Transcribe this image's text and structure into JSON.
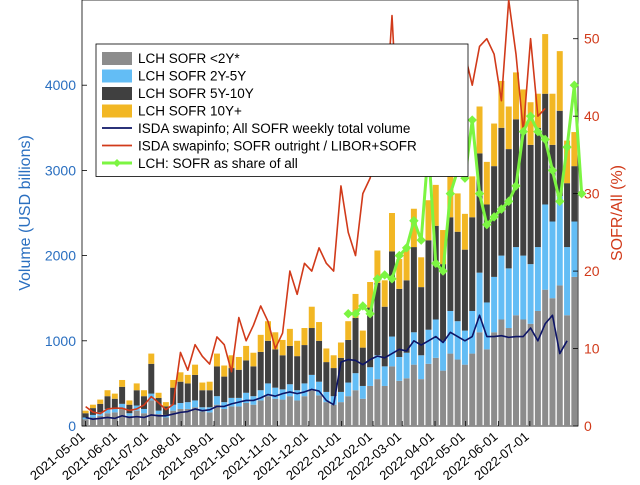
{
  "chart_data": {
    "type": "bar",
    "stacked": true,
    "xlabel": "",
    "ylabel_left": "Volume (USD billions)",
    "ylabel_right": "SOFR/All (%)",
    "ylim_left": [
      0,
      5000
    ],
    "ylim_right": [
      0,
      55
    ],
    "yticks_left": [
      0,
      1000,
      2000,
      3000,
      4000
    ],
    "yticks_right": [
      0,
      10,
      20,
      30,
      40,
      50
    ],
    "xticks": [
      {
        "label": "2021-05-01",
        "week": 0
      },
      {
        "label": "2021-06-01",
        "week": 4.4
      },
      {
        "label": "2021-07-01",
        "week": 8.7
      },
      {
        "label": "2021-08-01",
        "week": 13.1
      },
      {
        "label": "2021-09-01",
        "week": 17.6
      },
      {
        "label": "2021-10-01",
        "week": 21.9
      },
      {
        "label": "2021-11-01",
        "week": 26.3
      },
      {
        "label": "2021-12-01",
        "week": 30.6
      },
      {
        "label": "2022-01-01",
        "week": 35.1
      },
      {
        "label": "2022-02-01",
        "week": 39.4
      },
      {
        "label": "2022-03-01",
        "week": 43.4
      },
      {
        "label": "2022-04-01",
        "week": 47.9
      },
      {
        "label": "2022-05-01",
        "week": 52.1
      },
      {
        "label": "2022-06-01",
        "week": 56.6
      },
      {
        "label": "2022-07-01",
        "week": 60.9
      }
    ],
    "colors": {
      "lt2y": "#8c8c8c",
      "y2_5": "#63bdf5",
      "y5_10": "#404040",
      "y10p": "#f2b724",
      "isda_total": "#0d1466",
      "isda_ratio": "#d13a1a",
      "lch_share": "#7cf542",
      "axis_left": "#2a6fc0",
      "axis_right": "#d13a1a"
    },
    "series": [
      {
        "name": "LCH SOFR <2Y*",
        "key": "lt2y",
        "axis": "left",
        "kind": "bar",
        "values": [
          80,
          100,
          120,
          150,
          160,
          200,
          120,
          180,
          150,
          300,
          140,
          100,
          180,
          200,
          200,
          220,
          170,
          160,
          250,
          200,
          230,
          230,
          270,
          250,
          300,
          350,
          320,
          310,
          350,
          300,
          350,
          420,
          360,
          280,
          250,
          280,
          350,
          420,
          320,
          470,
          550,
          470,
          700,
          530,
          560,
          720,
          550,
          730,
          800,
          650,
          850,
          780,
          720,
          850,
          1100,
          900,
          1100,
          1250,
          1150,
          1300,
          1250,
          1200,
          1350,
          1600,
          1500,
          1650,
          1300,
          1750
        ]
      },
      {
        "name": "LCH SOFR 2Y-5Y",
        "key": "y2_5",
        "axis": "left",
        "kind": "bar",
        "values": [
          20,
          30,
          40,
          50,
          40,
          60,
          30,
          60,
          50,
          80,
          40,
          30,
          70,
          70,
          80,
          80,
          50,
          60,
          100,
          80,
          100,
          100,
          120,
          100,
          120,
          150,
          130,
          120,
          140,
          120,
          150,
          180,
          160,
          120,
          100,
          120,
          160,
          200,
          150,
          220,
          280,
          230,
          350,
          280,
          300,
          380,
          280,
          400,
          450,
          350,
          500,
          450,
          400,
          500,
          700,
          550,
          650,
          750,
          700,
          800,
          750,
          700,
          750,
          1000,
          900,
          1050,
          800,
          650
        ]
      },
      {
        "name": "LCH SOFR 5Y-10Y",
        "key": "y5_10",
        "axis": "left",
        "kind": "bar",
        "values": [
          50,
          80,
          100,
          150,
          120,
          200,
          100,
          180,
          150,
          350,
          150,
          100,
          200,
          250,
          220,
          300,
          200,
          200,
          350,
          300,
          350,
          330,
          380,
          350,
          450,
          500,
          450,
          400,
          450,
          400,
          450,
          550,
          480,
          350,
          330,
          400,
          500,
          650,
          450,
          700,
          850,
          700,
          1000,
          800,
          850,
          1000,
          800,
          1050,
          1100,
          900,
          1100,
          1050,
          950,
          1100,
          1400,
          1150,
          1300,
          1500,
          1400,
          1500,
          1450,
          1400,
          1400,
          1300,
          900,
          1000,
          750,
          650
        ]
      },
      {
        "name": "LCH SOFR 10Y+",
        "key": "y10p",
        "axis": "left",
        "kind": "bar",
        "values": [
          30,
          40,
          50,
          70,
          60,
          80,
          50,
          80,
          70,
          120,
          60,
          50,
          90,
          110,
          100,
          120,
          90,
          100,
          150,
          130,
          150,
          150,
          170,
          160,
          200,
          230,
          200,
          180,
          200,
          180,
          200,
          250,
          220,
          160,
          150,
          180,
          220,
          280,
          200,
          300,
          380,
          310,
          450,
          350,
          370,
          450,
          350,
          470,
          480,
          400,
          500,
          450,
          420,
          480,
          550,
          500,
          500,
          550,
          500,
          550,
          500,
          500,
          400,
          700,
          600,
          700,
          500,
          400
        ]
      },
      {
        "name": "ISDA swapinfo; All SOFR weekly total volume",
        "key": "isda_total",
        "axis": "left",
        "kind": "line",
        "values": [
          100,
          80,
          90,
          100,
          90,
          120,
          100,
          110,
          100,
          130,
          120,
          120,
          140,
          160,
          170,
          200,
          180,
          190,
          230,
          230,
          260,
          280,
          300,
          300,
          330,
          370,
          350,
          380,
          400,
          380,
          400,
          430,
          410,
          300,
          250,
          750,
          780,
          770,
          720,
          780,
          820,
          800,
          850,
          900,
          880,
          1000,
          950,
          1000,
          1050,
          980,
          1100,
          1050,
          1000,
          1050,
          1300,
          1050,
          1050,
          1060,
          1040,
          1050,
          1050,
          1150,
          1000,
          1200,
          1300,
          850,
          1000
        ]
      },
      {
        "name": "ISDA swapinfo; SOFR outright / LIBOR+SOFR",
        "key": "isda_ratio",
        "axis": "right",
        "kind": "line",
        "values": [
          2.5,
          1.8,
          1.6,
          2.2,
          2.3,
          2.3,
          2.0,
          2.2,
          2.7,
          3.8,
          3.0,
          2.1,
          2.8,
          9.5,
          7.2,
          10.5,
          9.0,
          8.0,
          11.5,
          10.5,
          7.0,
          14.0,
          11.0,
          13.0,
          15.5,
          13.5,
          10.0,
          12.0,
          20.0,
          17.0,
          21.0,
          20.0,
          23.0,
          21.0,
          20.0,
          31.0,
          25.0,
          22.0,
          30.0,
          32.0,
          36.0,
          38.0,
          53.0,
          35.0,
          39.0,
          38.0,
          41.0,
          43.0,
          43.0,
          46.0,
          41.0,
          45.0,
          48.0,
          44.0,
          49.0,
          50.0,
          48.0,
          42.0,
          56.0,
          48.0,
          38.0,
          50.0,
          40.0,
          41.0
        ]
      },
      {
        "name": "LCH: SOFR as share of all",
        "key": "lch_share",
        "axis": "right",
        "kind": "line-marker",
        "start_week": 36,
        "values": [
          14.5,
          14.5,
          15.5,
          14.5,
          19.0,
          19.5,
          19.0,
          22.0,
          23.0,
          26.5,
          24.0,
          36.0,
          21.0,
          20.0,
          30.0,
          33.0,
          32.0,
          39.5,
          30.0,
          26.0,
          27.0,
          28.0,
          29.0,
          31.0,
          38.0,
          40.0,
          38.0,
          37.0,
          33.0,
          29.0,
          36.0,
          44.0,
          30.0
        ]
      }
    ],
    "legend": {
      "placement": "top-center",
      "entries": [
        "LCH SOFR <2Y*",
        "LCH SOFR 2Y-5Y",
        "LCH SOFR 5Y-10Y",
        "LCH SOFR 10Y+",
        "ISDA swapinfo; All SOFR weekly total volume",
        "ISDA swapinfo; SOFR outright / LIBOR+SOFR",
        "LCH: SOFR as share of all"
      ]
    }
  }
}
